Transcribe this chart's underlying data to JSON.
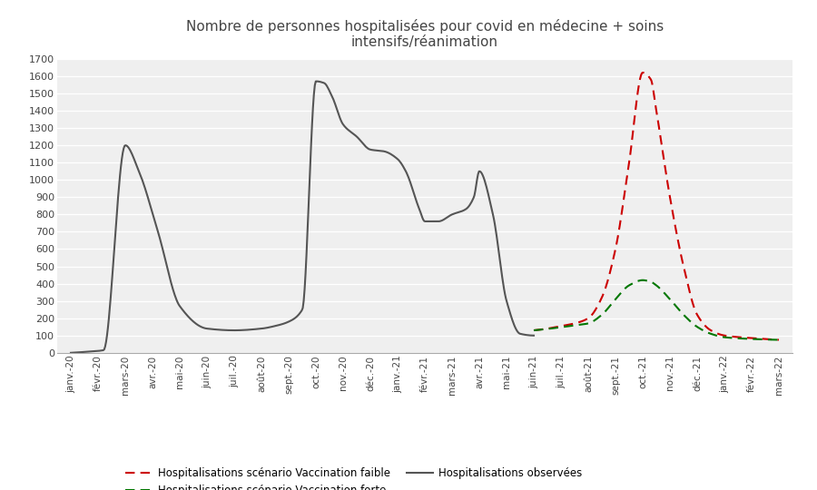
{
  "title": "Nombre de personnes hospitalisées pour covid en médecine + soins\nintensifs/réanimation",
  "background_color": "#ffffff",
  "plot_bg_color": "#efefef",
  "ylim": [
    0,
    1700
  ],
  "yticks": [
    0,
    100,
    200,
    300,
    400,
    500,
    600,
    700,
    800,
    900,
    1000,
    1100,
    1200,
    1300,
    1400,
    1500,
    1600,
    1700
  ],
  "x_labels": [
    "janv.-20",
    "févr.-20",
    "mars-20",
    "avr.-20",
    "mai-20",
    "juin-20",
    "juil.-20",
    "août-20",
    "sept.-20",
    "oct.-20",
    "nov.-20",
    "déc.-20",
    "janv.-21",
    "févr.-21",
    "mars-21",
    "avr.-21",
    "mai-21",
    "juin-21",
    "juil.-21",
    "août-21",
    "sept.-21",
    "oct.-21",
    "nov.-21",
    "déc.-21",
    "janv.-22",
    "févr.-22",
    "mars-22"
  ],
  "observed_color": "#555555",
  "faible_color": "#CC0000",
  "forte_color": "#007700",
  "legend_faible": "Hospitalisations scénario Vaccination faible",
  "legend_forte": "Hospitalisations scénario Vaccination forte",
  "legend_observed": "Hospitalisations observées",
  "observed_knots_x": [
    0,
    0.5,
    1.2,
    2.0,
    2.5,
    3.2,
    4.0,
    5.0,
    6.0,
    7.0,
    7.5,
    8.0,
    8.5,
    9.0,
    9.3,
    9.6,
    10.0,
    10.5,
    11.0,
    11.5,
    12.0,
    12.3,
    12.8,
    13.0,
    13.5,
    14.0,
    14.5,
    14.8,
    15.0,
    15.5,
    16.0,
    16.5,
    17.0
  ],
  "observed_knots_y": [
    0,
    5,
    15,
    1200,
    1050,
    700,
    270,
    140,
    130,
    140,
    155,
    180,
    250,
    1570,
    1560,
    1480,
    1320,
    1250,
    1175,
    1165,
    1120,
    1050,
    830,
    760,
    760,
    800,
    830,
    900,
    1050,
    800,
    300,
    110,
    100
  ],
  "faible_knots_x": [
    17.0,
    17.5,
    18.0,
    18.5,
    19.0,
    19.5,
    20.0,
    20.5,
    21.0,
    21.3,
    21.5,
    22.0,
    22.5,
    23.0,
    23.5,
    24.0,
    25.0,
    26.0
  ],
  "faible_knots_y": [
    130,
    140,
    155,
    170,
    200,
    320,
    600,
    1100,
    1620,
    1580,
    1400,
    900,
    500,
    220,
    130,
    100,
    85,
    75
  ],
  "forte_knots_x": [
    17.0,
    17.5,
    18.0,
    18.5,
    19.0,
    19.5,
    20.0,
    20.5,
    21.0,
    21.3,
    21.5,
    22.0,
    22.5,
    23.0,
    23.5,
    24.0,
    25.0,
    26.0
  ],
  "forte_knots_y": [
    130,
    138,
    148,
    158,
    170,
    220,
    310,
    390,
    420,
    410,
    390,
    310,
    220,
    150,
    110,
    90,
    80,
    75
  ]
}
